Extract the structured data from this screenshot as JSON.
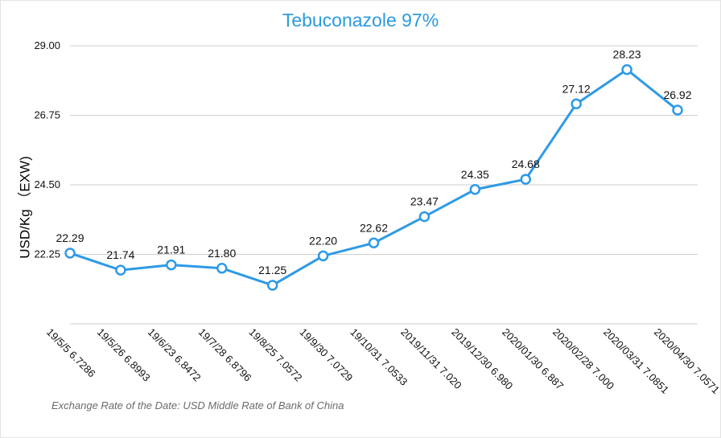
{
  "chart_data": {
    "type": "line",
    "title": "Tebuconazole 97%",
    "ylabel": "USD/Kg （EXW)",
    "xlabel": "",
    "ylim": [
      20.0,
      29.0
    ],
    "yticks": [
      "22.25",
      "24.50",
      "26.75",
      "29.00"
    ],
    "grid": true,
    "categories": [
      "19/5/5 6.7286",
      "19/5/26 6.8993",
      "19/6/23 6.8472",
      "19/7/28 6.8796",
      "19/8/25 7.0572",
      "19/9/30 7.0729",
      "19/10/31 7.0533",
      "2019/11/31 7.020",
      "2019/12/30 6.980",
      "2020/01/30 6.887",
      "2020/02/28 7.000",
      "2020/03/31 7.0851",
      "2020/04/30 7.0571"
    ],
    "series": [
      {
        "color": "#2e9ae6",
        "values": [
          22.29,
          21.74,
          21.91,
          21.8,
          21.25,
          22.2,
          22.62,
          23.47,
          24.35,
          24.68,
          27.12,
          28.23,
          26.92
        ],
        "labels": [
          "22.29",
          "21.74",
          "21.91",
          "21.80",
          "21.25",
          "22.20",
          "22.62",
          "23.47",
          "24.35",
          "24.68",
          "27.12",
          "28.23",
          "26.92"
        ]
      }
    ],
    "footnote": "Exchange Rate of the Date: USD Middle Rate of Bank of China"
  }
}
